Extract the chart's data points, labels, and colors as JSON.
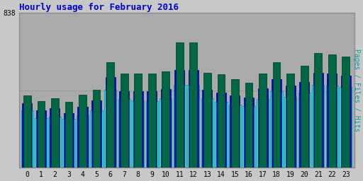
{
  "title": "Hourly usage for February 2016",
  "title_color": "#0000cc",
  "hours": [
    0,
    1,
    2,
    3,
    4,
    5,
    6,
    7,
    8,
    9,
    10,
    11,
    12,
    13,
    14,
    15,
    16,
    17,
    18,
    19,
    20,
    21,
    22,
    23
  ],
  "hits": [
    310,
    270,
    275,
    265,
    285,
    310,
    420,
    370,
    365,
    360,
    375,
    450,
    450,
    375,
    355,
    340,
    335,
    370,
    415,
    385,
    405,
    450,
    445,
    435
  ],
  "files": [
    350,
    310,
    320,
    295,
    330,
    365,
    490,
    415,
    415,
    415,
    425,
    530,
    530,
    420,
    405,
    390,
    380,
    430,
    480,
    445,
    465,
    515,
    510,
    500
  ],
  "pages": [
    390,
    360,
    375,
    355,
    395,
    420,
    570,
    510,
    510,
    510,
    520,
    680,
    680,
    515,
    505,
    480,
    460,
    510,
    570,
    510,
    550,
    620,
    615,
    600
  ],
  "ymax": 838,
  "ylabel_right": "Pages / Files / Hits",
  "hits_color": "#00ffff",
  "files_color": "#0000ee",
  "pages_color": "#006644",
  "bg_color": "#c8c8c8",
  "plot_bg": "#aaaaaa",
  "border_color": "#888888",
  "grid_color": "#999999",
  "hits_edge": "#008888",
  "files_edge": "#000088",
  "pages_edge": "#003322"
}
